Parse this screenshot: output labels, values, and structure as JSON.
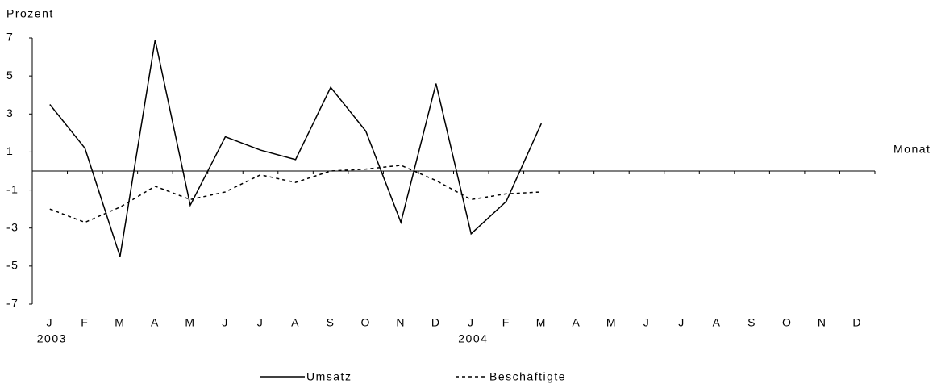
{
  "chart_data": {
    "type": "line",
    "y_axis_label": "Prozent",
    "x_axis_label": "Monat",
    "categories": [
      "J",
      "F",
      "M",
      "A",
      "M",
      "J",
      "J",
      "A",
      "S",
      "O",
      "N",
      "D",
      "J",
      "F",
      "M",
      "A",
      "M",
      "J",
      "J",
      "A",
      "S",
      "O",
      "N",
      "D"
    ],
    "year_labels": [
      "2003",
      null,
      null,
      null,
      null,
      null,
      null,
      null,
      null,
      null,
      null,
      null,
      "2004",
      null,
      null,
      null,
      null,
      null,
      null,
      null,
      null,
      null,
      null,
      null
    ],
    "series": [
      {
        "name": "Umsatz",
        "color": "#000000",
        "line_style": "solid",
        "values": [
          3.5,
          1.2,
          -4.5,
          6.9,
          -1.8,
          1.8,
          1.1,
          0.6,
          4.4,
          2.1,
          -2.7,
          4.6,
          -3.3,
          -1.6,
          2.5,
          null,
          null,
          null,
          null,
          null,
          null,
          null,
          null,
          null
        ]
      },
      {
        "name": "Beschäftigte",
        "color": "#000000",
        "line_style": "dotted",
        "values": [
          -2.0,
          -2.7,
          -1.9,
          -0.8,
          -1.5,
          -1.1,
          -0.2,
          -0.6,
          0.0,
          0.1,
          0.3,
          -0.5,
          -1.5,
          -1.2,
          -1.1,
          null,
          null,
          null,
          null,
          null,
          null,
          null,
          null,
          null
        ]
      }
    ],
    "ylim": [
      -7,
      7
    ],
    "yticks": [
      -7,
      -5,
      -3,
      -1,
      1,
      3,
      5,
      7
    ],
    "grid": false,
    "legend": "bottom"
  }
}
